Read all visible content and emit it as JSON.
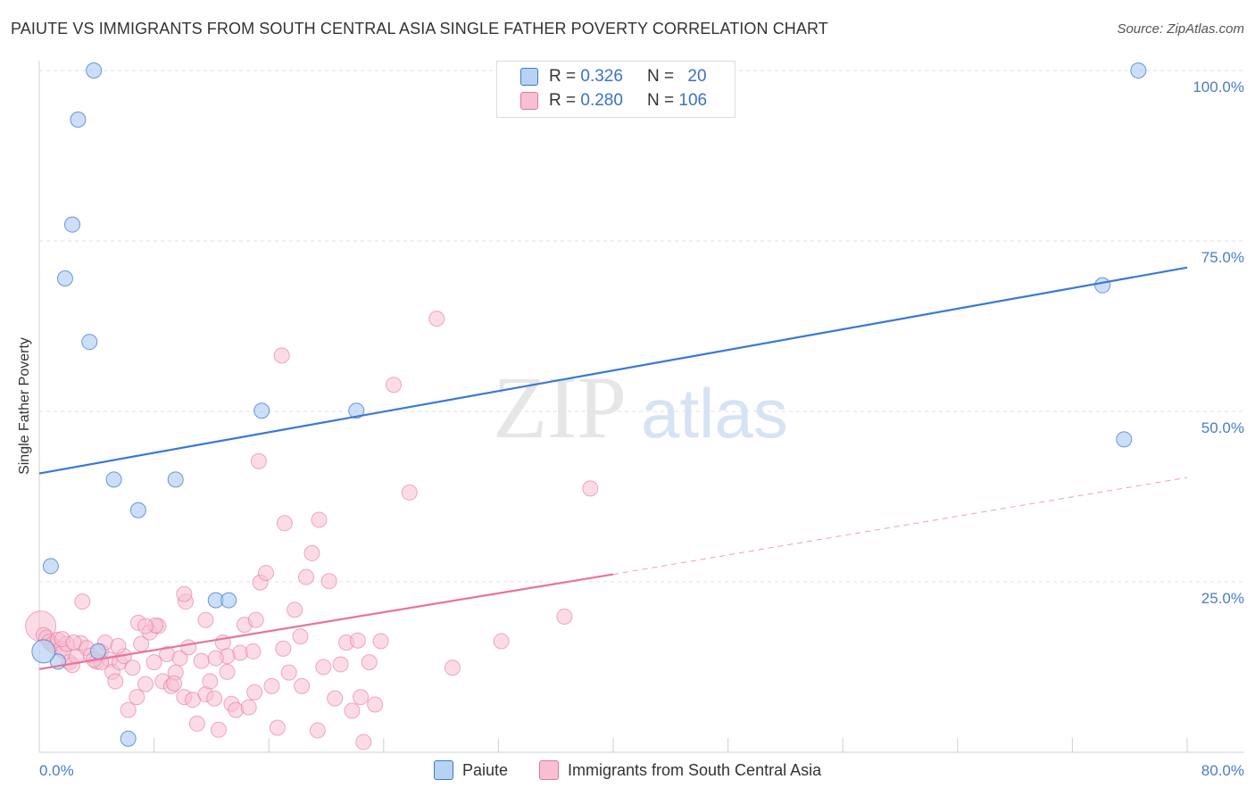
{
  "title": "PAIUTE VS IMMIGRANTS FROM SOUTH CENTRAL ASIA SINGLE FATHER POVERTY CORRELATION CHART",
  "source": "Source: ZipAtlas.com",
  "watermark": {
    "zip": "ZIP",
    "atlas": "atlas"
  },
  "legend": {
    "rows": [
      {
        "r_label": "R =",
        "r_value": "0.326",
        "n_label": "N =",
        "n_value": "20"
      },
      {
        "r_label": "R =",
        "r_value": "0.280",
        "n_label": "N =",
        "n_value": "106"
      }
    ]
  },
  "colors": {
    "paiute": "#3b78d4",
    "paiute_fill": "#b8d2f2",
    "immig": "#e8739b",
    "immig_fill": "#f7bfd2",
    "tick": "#4a7cc9"
  },
  "chart_data": {
    "type": "scatter",
    "title": "PAIUTE VS IMMIGRANTS FROM SOUTH CENTRAL ASIA SINGLE FATHER POVERTY CORRELATION CHART",
    "xlabel": "",
    "ylabel": "Single Father Poverty",
    "xlim": [
      0,
      80
    ],
    "ylim": [
      0,
      100
    ],
    "x_tick_labels": [
      "0.0%",
      "80.0%"
    ],
    "y_ticks": [
      25,
      50,
      75,
      100
    ],
    "y_tick_labels": [
      "25.0%",
      "50.0%",
      "75.0%",
      "100.0%"
    ],
    "series": [
      {
        "name": "Paiute",
        "points": [
          [
            3.8,
            100
          ],
          [
            2.7,
            92.8
          ],
          [
            2.3,
            77.4
          ],
          [
            1.8,
            69.5
          ],
          [
            3.5,
            60.2
          ],
          [
            15.5,
            50.1
          ],
          [
            22.1,
            50.1
          ],
          [
            5.2,
            40
          ],
          [
            9.5,
            40
          ],
          [
            6.9,
            35.5
          ],
          [
            0.8,
            27.3
          ],
          [
            12.3,
            22.3
          ],
          [
            13.2,
            22.3
          ],
          [
            4.1,
            14.8
          ],
          [
            1.3,
            13.3
          ],
          [
            0.3,
            14.8
          ],
          [
            6.2,
            2
          ],
          [
            74.1,
            68.5
          ],
          [
            75.6,
            45.9
          ],
          [
            76.6,
            100
          ]
        ],
        "trend": {
          "x": [
            0,
            80
          ],
          "y": [
            40.9,
            71.1
          ]
        }
      },
      {
        "name": "Immigrants from South Central Asia",
        "points": [
          [
            0.1,
            18.5
          ],
          [
            0.3,
            17.2
          ],
          [
            0.5,
            16.8
          ],
          [
            0.7,
            16.2
          ],
          [
            0.9,
            15.8
          ],
          [
            1.1,
            15.5
          ],
          [
            1.3,
            16.5
          ],
          [
            1.5,
            15.2
          ],
          [
            1.7,
            14.8
          ],
          [
            1.9,
            15.9
          ],
          [
            2.1,
            13.2
          ],
          [
            2.3,
            12.8
          ],
          [
            2.6,
            14.1
          ],
          [
            2.9,
            16
          ],
          [
            3.3,
            15.3
          ],
          [
            3.6,
            14.2
          ],
          [
            4,
            13.3
          ],
          [
            4.3,
            14.8
          ],
          [
            4.6,
            16.1
          ],
          [
            4.9,
            13.6
          ],
          [
            5.1,
            11.8
          ],
          [
            5.3,
            10.4
          ],
          [
            5.6,
            13.2
          ],
          [
            5.9,
            14.1
          ],
          [
            6.2,
            6.2
          ],
          [
            6.5,
            12.4
          ],
          [
            6.8,
            8.1
          ],
          [
            7.1,
            15.9
          ],
          [
            7.4,
            10
          ],
          [
            7.7,
            17.6
          ],
          [
            8,
            13.2
          ],
          [
            8.3,
            18.5
          ],
          [
            8.6,
            10.4
          ],
          [
            8.9,
            14.4
          ],
          [
            9.2,
            9.7
          ],
          [
            9.5,
            11.7
          ],
          [
            9.8,
            13.8
          ],
          [
            10.1,
            8.1
          ],
          [
            10.4,
            15.4
          ],
          [
            10.7,
            7.7
          ],
          [
            11,
            4.2
          ],
          [
            11.3,
            13.4
          ],
          [
            11.6,
            8.5
          ],
          [
            11.9,
            10.4
          ],
          [
            12.2,
            7.9
          ],
          [
            12.5,
            3.3
          ],
          [
            12.8,
            16.1
          ],
          [
            13.1,
            11.8
          ],
          [
            13.4,
            7.1
          ],
          [
            13.7,
            6.2
          ],
          [
            14,
            14.6
          ],
          [
            14.3,
            18.7
          ],
          [
            14.6,
            6.6
          ],
          [
            15,
            8.8
          ],
          [
            15.4,
            24.9
          ],
          [
            15.8,
            26.3
          ],
          [
            16.2,
            9.7
          ],
          [
            16.6,
            3.6
          ],
          [
            17,
            15.2
          ],
          [
            17.4,
            11.7
          ],
          [
            17.8,
            20.9
          ],
          [
            18.2,
            17
          ],
          [
            18.6,
            25.7
          ],
          [
            19,
            29.2
          ],
          [
            19.4,
            3.2
          ],
          [
            19.8,
            12.5
          ],
          [
            20.2,
            25.1
          ],
          [
            20.6,
            7.9
          ],
          [
            21,
            12.9
          ],
          [
            21.4,
            16.1
          ],
          [
            21.8,
            6.1
          ],
          [
            22.2,
            16.4
          ],
          [
            22.6,
            1.5
          ],
          [
            23,
            13.2
          ],
          [
            23.4,
            7
          ],
          [
            23.8,
            16.3
          ],
          [
            3,
            22.1
          ],
          [
            4.3,
            13.2
          ],
          [
            6.9,
            19
          ],
          [
            8.1,
            18.6
          ],
          [
            10.2,
            22.1
          ],
          [
            11.6,
            19.4
          ],
          [
            10.1,
            23.2
          ],
          [
            15.3,
            42.7
          ],
          [
            16.9,
            58.2
          ],
          [
            17.1,
            33.6
          ],
          [
            19.5,
            34.1
          ],
          [
            24.7,
            53.9
          ],
          [
            25.8,
            38.1
          ],
          [
            27.7,
            63.6
          ],
          [
            28.8,
            12.4
          ],
          [
            32.2,
            16.3
          ],
          [
            36.6,
            19.9
          ],
          [
            38.4,
            38.7
          ],
          [
            15.1,
            19.4
          ],
          [
            13.1,
            14.1
          ],
          [
            9.4,
            10.1
          ],
          [
            1.6,
            16.6
          ],
          [
            2.4,
            16.1
          ],
          [
            3.8,
            13.6
          ],
          [
            7.4,
            18.5
          ],
          [
            12.3,
            13.8
          ],
          [
            14.9,
            14.8
          ],
          [
            18.3,
            9.7
          ],
          [
            22.4,
            8.1
          ],
          [
            5.5,
            15.6
          ]
        ],
        "trend": {
          "x": [
            0,
            40
          ],
          "y": [
            12.2,
            26.1
          ]
        },
        "trend_extension": {
          "x": [
            40,
            80
          ],
          "y": [
            26.1,
            40.3
          ]
        }
      }
    ],
    "legend_position": "top-center"
  }
}
